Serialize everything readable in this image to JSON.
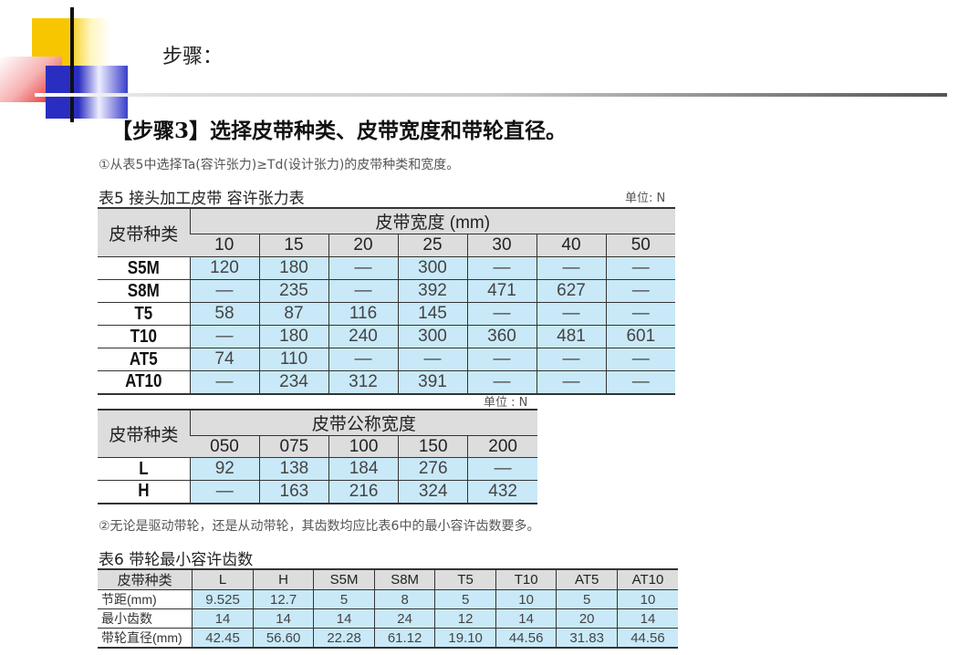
{
  "slide": {
    "title": "步骤：",
    "heading": "【步骤3】选择皮带种类、皮带宽度和带轮直径。"
  },
  "note1": "①从表5中选择Ta(容许张力)≥Td(设计张力)的皮带种类和宽度。",
  "table5": {
    "caption": "表5  接头加工皮带  容许张力表",
    "unit": "单位: N",
    "row_header": "皮带种类",
    "group_header": "皮带宽度 (mm)",
    "columns": [
      "10",
      "15",
      "20",
      "25",
      "30",
      "40",
      "50"
    ],
    "rows": [
      {
        "type": "S5M",
        "values": [
          "120",
          "180",
          "—",
          "300",
          "—",
          "—",
          "—"
        ]
      },
      {
        "type": "S8M",
        "values": [
          "—",
          "235",
          "—",
          "392",
          "471",
          "627",
          "—"
        ]
      },
      {
        "type": "T5",
        "values": [
          "58",
          "87",
          "116",
          "145",
          "—",
          "—",
          "—"
        ]
      },
      {
        "type": "T10",
        "values": [
          "—",
          "180",
          "240",
          "300",
          "360",
          "481",
          "601"
        ]
      },
      {
        "type": "AT5",
        "values": [
          "74",
          "110",
          "—",
          "—",
          "—",
          "—",
          "—"
        ]
      },
      {
        "type": "AT10",
        "values": [
          "—",
          "234",
          "312",
          "391",
          "—",
          "—",
          "—"
        ]
      }
    ]
  },
  "table5b": {
    "unit": "单位 : N",
    "row_header": "皮带种类",
    "group_header": "皮带公称宽度",
    "columns": [
      "050",
      "075",
      "100",
      "150",
      "200"
    ],
    "rows": [
      {
        "type": "L",
        "values": [
          "92",
          "138",
          "184",
          "276",
          "—"
        ]
      },
      {
        "type": "H",
        "values": [
          "—",
          "163",
          "216",
          "324",
          "432"
        ]
      }
    ]
  },
  "note2": "②无论是驱动带轮，还是从动带轮，其齿数均应比表6中的最小容许齿数要多。",
  "table6": {
    "caption": "表6  带轮最小容许齿数",
    "row_header": "皮带种类",
    "columns": [
      "L",
      "H",
      "S5M",
      "S8M",
      "T5",
      "T10",
      "AT5",
      "AT10"
    ],
    "rows": [
      {
        "label": "节距(mm)",
        "values": [
          "9.525",
          "12.7",
          "5",
          "8",
          "5",
          "10",
          "5",
          "10"
        ]
      },
      {
        "label": "最小齿数",
        "values": [
          "14",
          "14",
          "14",
          "24",
          "12",
          "14",
          "20",
          "14"
        ]
      },
      {
        "label": "带轮直径(mm)",
        "values": [
          "42.45",
          "56.60",
          "22.28",
          "61.12",
          "19.10",
          "44.56",
          "31.83",
          "44.56"
        ]
      }
    ]
  }
}
